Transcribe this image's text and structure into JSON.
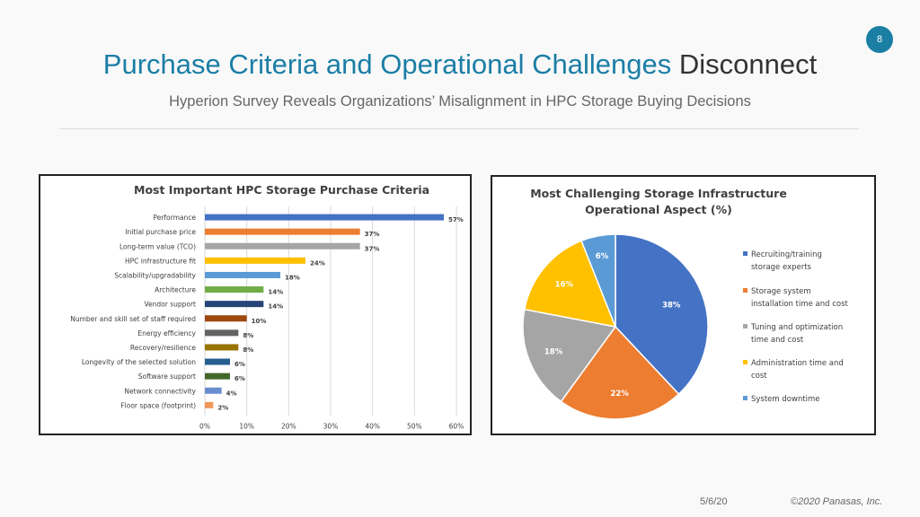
{
  "slide": {
    "page_number": "8",
    "title_main": "Purchase Criteria and Operational Challenges",
    "title_accent": "Disconnect",
    "subtitle": "Hyperion Survey Reveals Organizations’ Misalignment in HPC Storage Buying Decisions",
    "footer_date": "5/6/20",
    "footer_copyright": "©2020 Panasas, Inc."
  },
  "chart_data": [
    {
      "type": "bar",
      "orientation": "horizontal",
      "title": "Most Important HPC Storage Purchase Criteria",
      "categories": [
        "Performance",
        "Initial purchase price",
        "Long-term value (TCO)",
        "HPC infrastructure fit",
        "Scalability/upgradability",
        "Architecture",
        "Vendor support",
        "Number and skill set of staff required",
        "Energy efficiency",
        "Recovery/resilience",
        "Longevity of the selected solution",
        "Software support",
        "Network connectivity",
        "Floor space (footprint)"
      ],
      "values": [
        57,
        37,
        37,
        24,
        18,
        14,
        14,
        10,
        8,
        8,
        6,
        6,
        4,
        2
      ],
      "data_labels": [
        "57%",
        "37%",
        "37%",
        "24%",
        "18%",
        "14%",
        "14%",
        "10%",
        "8%",
        "8%",
        "6%",
        "6%",
        "4%",
        "2%"
      ],
      "colors": [
        "#4472c4",
        "#ed7d31",
        "#a5a5a5",
        "#ffc000",
        "#5b9bd5",
        "#70ad47",
        "#264478",
        "#9e480e",
        "#636363",
        "#997300",
        "#255e91",
        "#43682b",
        "#698ed0",
        "#f1975a"
      ],
      "xlim": [
        0,
        60
      ],
      "x_ticks": [
        "0%",
        "10%",
        "20%",
        "30%",
        "40%",
        "50%",
        "60%"
      ],
      "grid": "vertical"
    },
    {
      "type": "pie",
      "title_lines": [
        "Most Challenging Storage Infrastructure",
        "Operational Aspect (%)"
      ],
      "labels": [
        "Recruiting/training storage experts",
        "Storage system installation time and cost",
        "Tuning and optimization time and cost",
        "Administration time and cost",
        "System downtime"
      ],
      "legend_lines": [
        [
          "Recruiting/training",
          "storage experts"
        ],
        [
          "Storage system",
          "installation time and cost"
        ],
        [
          "Tuning and optimization",
          "time and cost"
        ],
        [
          "Administration time and",
          "cost"
        ],
        [
          "System downtime"
        ]
      ],
      "values": [
        38,
        22,
        18,
        16,
        6
      ],
      "data_labels": [
        "38%",
        "22%",
        "18%",
        "16%",
        "6%"
      ],
      "colors": [
        "#4472c4",
        "#ed7d31",
        "#a5a5a5",
        "#ffc000",
        "#5b9bd5"
      ],
      "legend_position": "right"
    }
  ]
}
